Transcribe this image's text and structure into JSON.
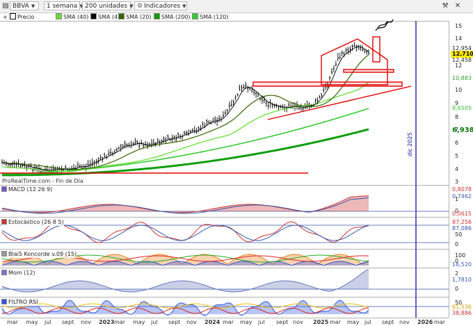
{
  "toolbar": {
    "symbol": "BBVA",
    "timeframe": "1 semana",
    "units": "200 unidades",
    "indicators": "Indicadores",
    "close_icon": "x-icon",
    "settings_icon": "wrench-icon"
  },
  "legend": {
    "price": "Precio",
    "sma40": "SMA (40)",
    "sma4": "SMA (4)",
    "sma20": "SMA (20)",
    "sma200": "SMA (200)",
    "sma120": "SMA (120)"
  },
  "watermark": "ProRealTime.com - Fin de Día",
  "date_marker": "dic 2025",
  "price_axis": {
    "ticks": [
      "15",
      "14",
      "12",
      "10",
      "9",
      "8",
      "7",
      "6",
      "5",
      "4",
      "3"
    ],
    "tags": [
      {
        "label": "12,954",
        "color": "#ffffff",
        "text": "#222222"
      },
      {
        "label": "12,710",
        "color": "#ffeb00",
        "text": "#000000"
      },
      {
        "label": "12,458",
        "color": "#ffffff",
        "text": "#222222"
      },
      {
        "label": "10,883",
        "color": "#ffffff",
        "text": "#2e9e2e"
      },
      {
        "label": "8,6505",
        "color": "#ffffff",
        "text": "#3bbf3b"
      },
      {
        "label": "6,938",
        "color": "#ffffff",
        "text": "#0b7a0b"
      }
    ]
  },
  "panels": {
    "macd": {
      "label": "MACD (12 26 9)",
      "values": [
        "0,8078",
        "0,7462",
        "0,0615"
      ],
      "ticks": [
        "1",
        "0"
      ]
    },
    "stoch": {
      "label": "Estocástico (26 8 5)",
      "values": [
        "87,256",
        "87,086"
      ],
      "ticks": [
        "50",
        "0"
      ]
    },
    "koncorde": {
      "label": "Blai5 Koncorde v.09 (15)",
      "values": [
        "16,520"
      ],
      "ticks": [
        "100",
        "0"
      ]
    },
    "mom": {
      "label": "Mom (12)",
      "values": [
        "1,7810"
      ],
      "ticks": [
        "2",
        "0"
      ]
    },
    "rsi": {
      "label": "FILTRO RSI",
      "values": [
        "61,536",
        "38,886"
      ],
      "ticks": [
        "50"
      ]
    }
  },
  "x_axis": {
    "labels": [
      "mar",
      "may",
      "jul",
      "sept",
      "nov",
      "2023",
      "mar",
      "may",
      "jul",
      "sept",
      "nov",
      "2024",
      "mar",
      "may",
      "jul",
      "sept",
      "nov",
      "2025",
      "mar",
      "may",
      "jul",
      "sept",
      "nov",
      "2026",
      "mar"
    ]
  },
  "colors": {
    "sma200": "#0b9e0b",
    "sma120": "#33cc33",
    "sma40": "#66dd33",
    "sma20": "#336600",
    "sma4": "#000000",
    "drawing": "#e00000",
    "marker": "#1010a0"
  }
}
